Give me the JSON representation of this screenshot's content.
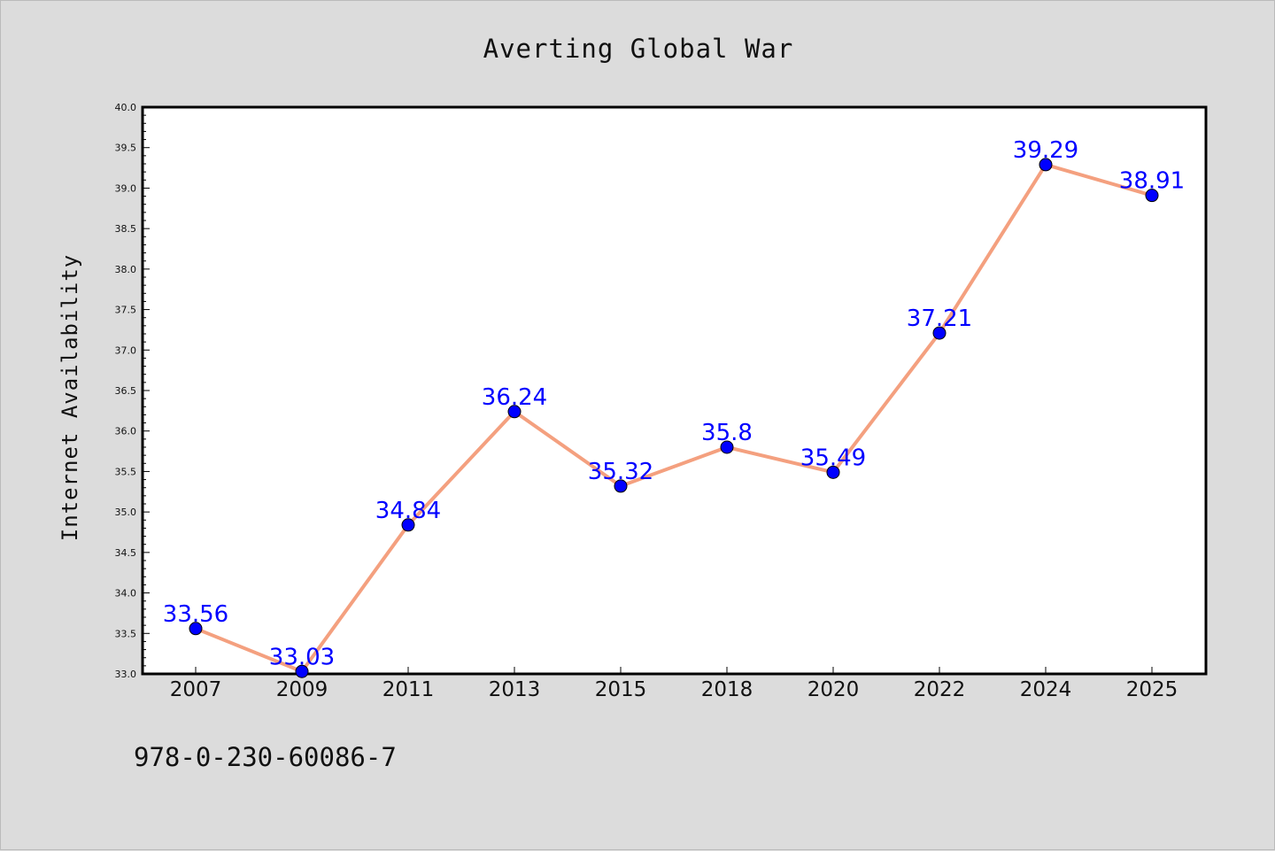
{
  "chart_data": {
    "type": "line",
    "title": "Averting Global War",
    "xlabel": "",
    "ylabel": "Internet Availability",
    "categories": [
      "2007",
      "2009",
      "2011",
      "2013",
      "2015",
      "2018",
      "2020",
      "2022",
      "2024",
      "2025"
    ],
    "series": [
      {
        "values": [
          33.56,
          33.03,
          34.84,
          36.24,
          35.32,
          35.8,
          35.49,
          37.21,
          39.29,
          38.91
        ],
        "labels": [
          "33.56",
          "33.03",
          "34.84",
          "36.24",
          "35.32",
          "35.8",
          "35.49",
          "37.21",
          "39.29",
          "38.91"
        ],
        "line_color": "#f4a07f",
        "marker_color": "#0000ff",
        "label_color": "#0000ff"
      }
    ],
    "ylim": [
      33.0,
      40.0
    ],
    "yticks": [
      "33.0",
      "33.5",
      "34.0",
      "34.5",
      "35.0",
      "35.5",
      "36.0",
      "36.5",
      "37.0",
      "37.5",
      "38.0",
      "38.5",
      "39.0",
      "39.5",
      "40.0"
    ],
    "grid": false,
    "legend": "none"
  },
  "footer": {
    "isbn": "978-0-230-60086-7"
  },
  "colors": {
    "background": "#dcdcdc",
    "plot_background": "#ffffff",
    "axis": "#000000"
  }
}
